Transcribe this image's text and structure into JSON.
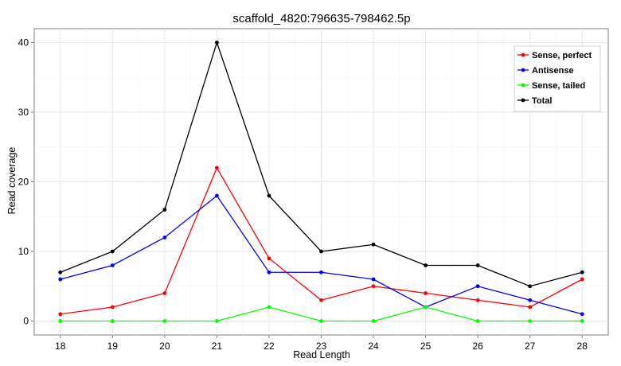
{
  "chart_data": {
    "type": "line",
    "title": "scaffold_4820:796635-798462.5p",
    "xlabel": "Read Length",
    "ylabel": "Read coverage",
    "x": [
      18,
      19,
      20,
      21,
      22,
      23,
      24,
      25,
      26,
      27,
      28
    ],
    "xlim": [
      17.5,
      28.5
    ],
    "ylim": [
      -2,
      42
    ],
    "yticks": [
      0,
      10,
      20,
      30,
      40
    ],
    "grid": true,
    "legend_position": "top-right",
    "series": [
      {
        "name": "Sense, perfect",
        "color": "#ff0000",
        "values": [
          1,
          2,
          4,
          22,
          9,
          3,
          5,
          4,
          3,
          2,
          6
        ]
      },
      {
        "name": "Antisense",
        "color": "#0000ff",
        "values": [
          6,
          8,
          12,
          18,
          7,
          7,
          6,
          2,
          5,
          3,
          1
        ]
      },
      {
        "name": "Sense, tailed",
        "color": "#00ff00",
        "values": [
          0,
          0,
          0,
          0,
          2,
          0,
          0,
          2,
          0,
          0,
          0
        ]
      },
      {
        "name": "Total",
        "color": "#000000",
        "values": [
          7,
          10,
          16,
          40,
          18,
          10,
          11,
          8,
          8,
          5,
          7
        ]
      }
    ]
  }
}
